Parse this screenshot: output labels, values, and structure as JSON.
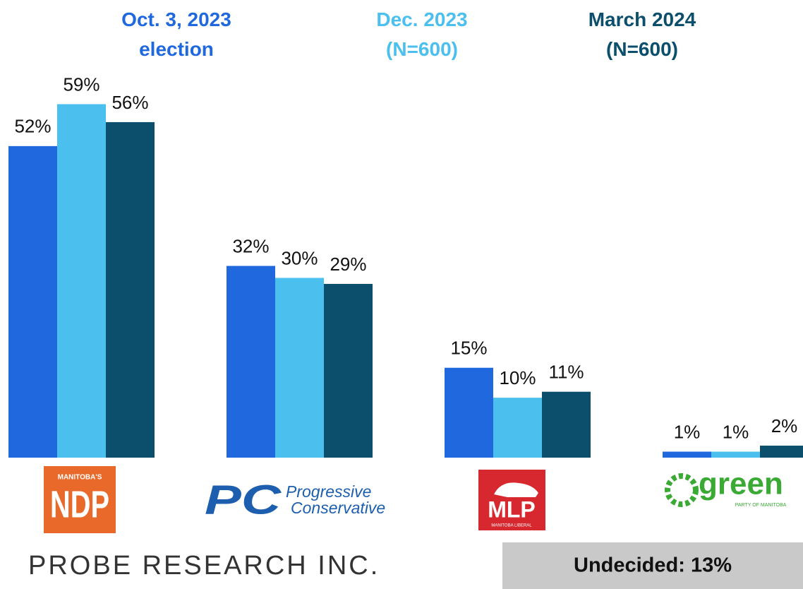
{
  "chart_data": {
    "type": "bar",
    "series": [
      {
        "name": "Oct. 3, 2023\nelection",
        "color": "#1f68de",
        "values": [
          52,
          32,
          15,
          1
        ],
        "value_labels": [
          "52%",
          "32%",
          "15%",
          "1%"
        ]
      },
      {
        "name": "Dec. 2023\n(N=600)",
        "color": "#4bbfed",
        "values": [
          59,
          30,
          10,
          1
        ],
        "value_labels": [
          "59%",
          "30%",
          "10%",
          "1%"
        ]
      },
      {
        "name": "March 2024\n(N=600)",
        "color": "#0b4f6c",
        "values": [
          56,
          29,
          11,
          2
        ],
        "value_labels": [
          "56%",
          "29%",
          "11%",
          "2%"
        ]
      }
    ],
    "categories": [
      "NDP",
      "PC",
      "MLP",
      "green"
    ],
    "logo_texts": [
      [
        "MANITOBA'S"
      ],
      [
        "Progressive",
        "Conservative"
      ],
      [
        "MANITOBA LIBERAL"
      ],
      [
        "PARTY OF MANITOBA"
      ]
    ],
    "ylim": [
      0,
      60
    ],
    "annotations": [
      "PROBE RESEARCH INC.",
      "Undecided: 13%"
    ]
  }
}
